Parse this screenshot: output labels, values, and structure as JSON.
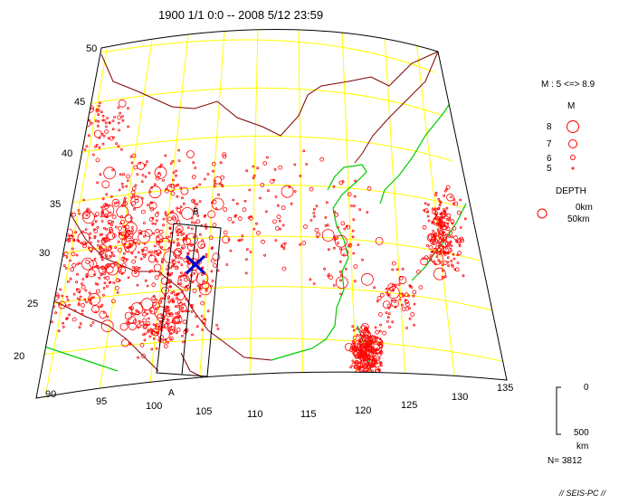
{
  "map": {
    "title": "1900 1/1  0:0 -- 2008 5/12 23:59",
    "lat_labels": [
      "50",
      "45",
      "40",
      "35",
      "30",
      "25",
      "20"
    ],
    "lon_labels": [
      "90",
      "95",
      "100",
      "105",
      "110",
      "115",
      "120",
      "125",
      "130",
      "135"
    ],
    "section_labels": {
      "a": "A",
      "b": "B"
    },
    "epicenter_marker": "x-marker",
    "colors": {
      "grid": "#ffff00",
      "border": "#800000",
      "coast": "#00cc00",
      "events": "#ff0000",
      "epicenter": "#0000cc",
      "frame": "#000000"
    }
  },
  "legend": {
    "magnitude_range": "M : 5 <=> 8.9",
    "m_header": "M",
    "m_items": [
      "8",
      "7",
      "6",
      "5"
    ],
    "depth_header": "DEPTH",
    "depth_items": [
      "0km",
      "50km"
    ]
  },
  "scale_bar": {
    "top": "0",
    "bottom": "500",
    "unit": "km"
  },
  "count": "N= 3812",
  "footer": "// SEIS-PC //"
}
